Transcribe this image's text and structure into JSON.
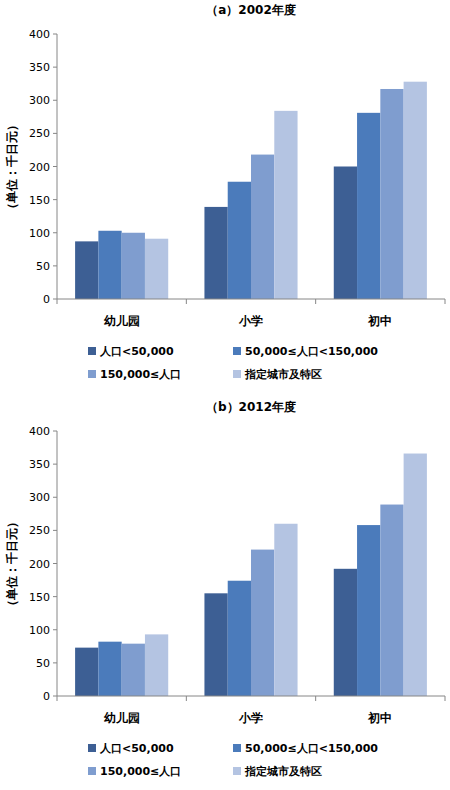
{
  "chart_data": [
    {
      "type": "bar",
      "title": "（a）2002年度",
      "ylabel": "（单位：千日元）",
      "categories": [
        "幼儿园",
        "小学",
        "初中"
      ],
      "series": [
        {
          "name": "人口<50,000",
          "color": "#3d5f94",
          "values": [
            87,
            139,
            200
          ]
        },
        {
          "name": "50,000≤人口<150,000",
          "color": "#4b7bbb",
          "values": [
            103,
            177,
            281
          ]
        },
        {
          "name": "150,000≤人口",
          "color": "#7f9dcf",
          "values": [
            100,
            218,
            317
          ]
        },
        {
          "name": "指定城市及特区",
          "color": "#b4c4e2",
          "values": [
            91,
            284,
            328
          ]
        }
      ],
      "ylim": [
        0,
        400
      ],
      "yticks": [
        0,
        50,
        100,
        150,
        200,
        250,
        300,
        350,
        400
      ],
      "grid": false,
      "legend": "bottom"
    },
    {
      "type": "bar",
      "title": "（b）2012年度",
      "ylabel": "（单位：千日元）",
      "categories": [
        "幼儿园",
        "小学",
        "初中"
      ],
      "series": [
        {
          "name": "人口<50,000",
          "color": "#3d5f94",
          "values": [
            73,
            155,
            192
          ]
        },
        {
          "name": "50,000≤人口<150,000",
          "color": "#4b7bbb",
          "values": [
            82,
            174,
            258
          ]
        },
        {
          "name": "150,000≤人口",
          "color": "#7f9dcf",
          "values": [
            79,
            221,
            289
          ]
        },
        {
          "name": "指定城市及特区",
          "color": "#b4c4e2",
          "values": [
            93,
            260,
            366
          ]
        }
      ],
      "ylim": [
        0,
        400
      ],
      "yticks": [
        0,
        50,
        100,
        150,
        200,
        250,
        300,
        350,
        400
      ],
      "grid": false,
      "legend": "bottom"
    }
  ]
}
